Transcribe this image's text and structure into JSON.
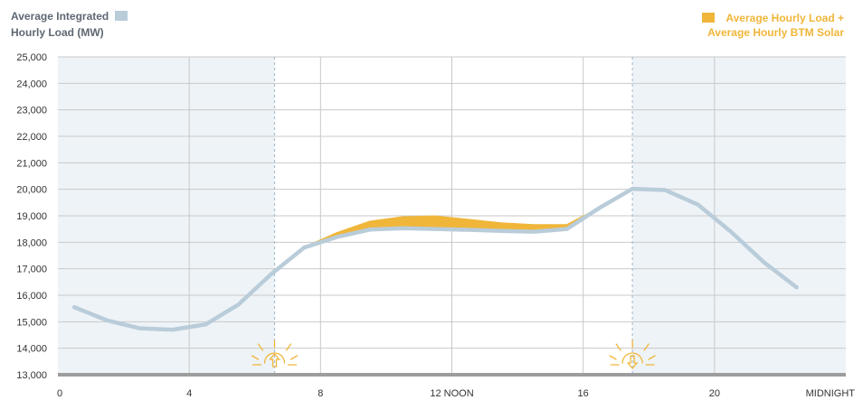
{
  "chart_data": {
    "type": "area",
    "legend": {
      "load_label_line1": "Average Integrated",
      "load_label_line2": "Hourly Load (MW)",
      "solar_label_line1": "Average Hourly Load +",
      "solar_label_line2": "Average Hourly BTM Solar",
      "load_color": "#b9ccd9",
      "solar_color": "#f0b63a",
      "placement": "top"
    },
    "xlim": [
      0,
      24
    ],
    "ylim": [
      13000,
      25000
    ],
    "y_ticks": [
      13000,
      14000,
      15000,
      16000,
      17000,
      18000,
      19000,
      20000,
      21000,
      22000,
      23000,
      24000,
      25000
    ],
    "y_tick_labels": [
      "13,000",
      "14,000",
      "15,000",
      "16,000",
      "17,000",
      "18,000",
      "19,000",
      "20,000",
      "21,000",
      "22,000",
      "23,000",
      "24,000",
      "25,000"
    ],
    "x_ticks": [
      0,
      4,
      8,
      12,
      16,
      20,
      24
    ],
    "x_tick_labels": [
      "0",
      "4",
      "8",
      "12 NOON",
      "16",
      "20",
      "MIDNIGHT"
    ],
    "night_shading": [
      [
        0,
        6.6
      ],
      [
        17.5,
        24
      ]
    ],
    "sunrise_hour": 6.6,
    "sunset_hour": 17.5,
    "sunrise_icon": "sunrise-icon",
    "sunset_icon": "sunset-icon",
    "series": [
      {
        "name": "Average Integrated Hourly Load (MW)",
        "x": [
          0.5,
          1.5,
          2.5,
          3.5,
          4.5,
          5.5,
          6.5,
          7.5,
          8.5,
          9.5,
          10.5,
          11.5,
          12.5,
          13.5,
          14.5,
          15.5,
          16.5,
          17.5,
          18.5,
          19.5,
          20.5,
          21.5,
          22.5
        ],
        "values": [
          15550,
          15050,
          14750,
          14700,
          14900,
          15650,
          16800,
          17800,
          18200,
          18480,
          18530,
          18500,
          18470,
          18430,
          18400,
          18500,
          19300,
          20020,
          19970,
          19420,
          18400,
          17250,
          16300
        ]
      },
      {
        "name": "Average Hourly Load + Average Hourly BTM Solar",
        "x": [
          7.5,
          8.5,
          9.5,
          10.5,
          11.5,
          12.5,
          13.5,
          14.5,
          15.5,
          16.5
        ],
        "values": [
          17800,
          18350,
          18780,
          18950,
          18980,
          18850,
          18720,
          18650,
          18650,
          19300
        ]
      }
    ]
  }
}
